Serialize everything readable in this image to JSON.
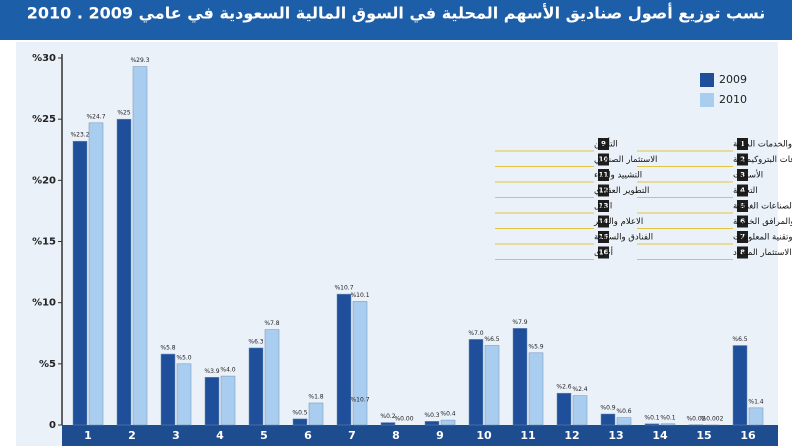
{
  "chart_data": {
    "type": "bar",
    "title": "نسب توزيع أصول صناديق الأسهم المحلية في السوق المالية السعودية في عامي 2009 . 2010",
    "categories": [
      "1",
      "2",
      "3",
      "4",
      "5",
      "6",
      "7",
      "8",
      "9",
      "10",
      "11",
      "12",
      "13",
      "14",
      "15",
      "16"
    ],
    "series": [
      {
        "name": "2009",
        "color": "#1f4f9a",
        "values": [
          23.2,
          25,
          5.8,
          3.9,
          6.3,
          0.5,
          10.7,
          0.2,
          0.3,
          7.0,
          7.9,
          2.6,
          0.9,
          0.1,
          0.02,
          6.5
        ],
        "value_labels": [
          "%23.2",
          "%25",
          "%5.8",
          "%3.9",
          "%6.3",
          "%0.5",
          "%10.7",
          "%0.2",
          "%0.3",
          "%7.0",
          "%7.9",
          "%2.6",
          "%0.9",
          "%0.1",
          "%0.02",
          "%6.5"
        ]
      },
      {
        "name": "2010",
        "color": "#a9cdee",
        "values": [
          24.7,
          29.3,
          5.0,
          4.0,
          7.8,
          1.8,
          10.1,
          0.0,
          0.4,
          6.5,
          5.9,
          2.4,
          0.6,
          0.1,
          0.002,
          1.4
        ],
        "value_labels": [
          "%24.7",
          "%29.3",
          "%5.0",
          "%4.0",
          "%7.8",
          "%1.8",
          "%10.1",
          "%0.00",
          "%0.4",
          "%6.5",
          "%5.9",
          "%2.4",
          "%0.6",
          "%0.1",
          "%0.002",
          "%1.4"
        ]
      }
    ],
    "ylim": [
      0,
      30
    ],
    "yticks": [
      0,
      {
        "value": 5,
        "label": "%5"
      },
      {
        "value": 10,
        "label": "%10"
      },
      {
        "value": 15,
        "label": "%15"
      },
      {
        "value": 20,
        "label": "%20"
      },
      {
        "value": 25,
        "label": "%25"
      },
      {
        "value": 30,
        "label": "%30"
      }
    ],
    "legend": "top-right",
    "annotations": [
      "%10.7"
    ],
    "key": [
      {
        "number": "1",
        "label": "المصارف والخدمات المالية"
      },
      {
        "number": "2",
        "label": "الصناعات البتروكيماوية"
      },
      {
        "number": "3",
        "label": "الأسمنت"
      },
      {
        "number": "4",
        "label": "التجزئة"
      },
      {
        "number": "5",
        "label": "الزراعة والصناعات الغذائية"
      },
      {
        "number": "6",
        "label": "الطاقة والمرافق الخدمية"
      },
      {
        "number": "7",
        "label": "الاتصالات وتقنية المعلومات"
      },
      {
        "number": "8",
        "label": "شركات الاستثمار المتعدد"
      },
      {
        "number": "9",
        "label": "التأمين"
      },
      {
        "number": "10",
        "label": "الاستثمار الصناعي"
      },
      {
        "number": "11",
        "label": "التشييد والبناء"
      },
      {
        "number": "12",
        "label": "التطوير العقاري"
      },
      {
        "number": "13",
        "label": "النقل"
      },
      {
        "number": "14",
        "label": "الاعلام والنشر"
      },
      {
        "number": "15",
        "label": "الفنادق والسياحة"
      },
      {
        "number": "16",
        "label": "أخرى"
      }
    ]
  }
}
